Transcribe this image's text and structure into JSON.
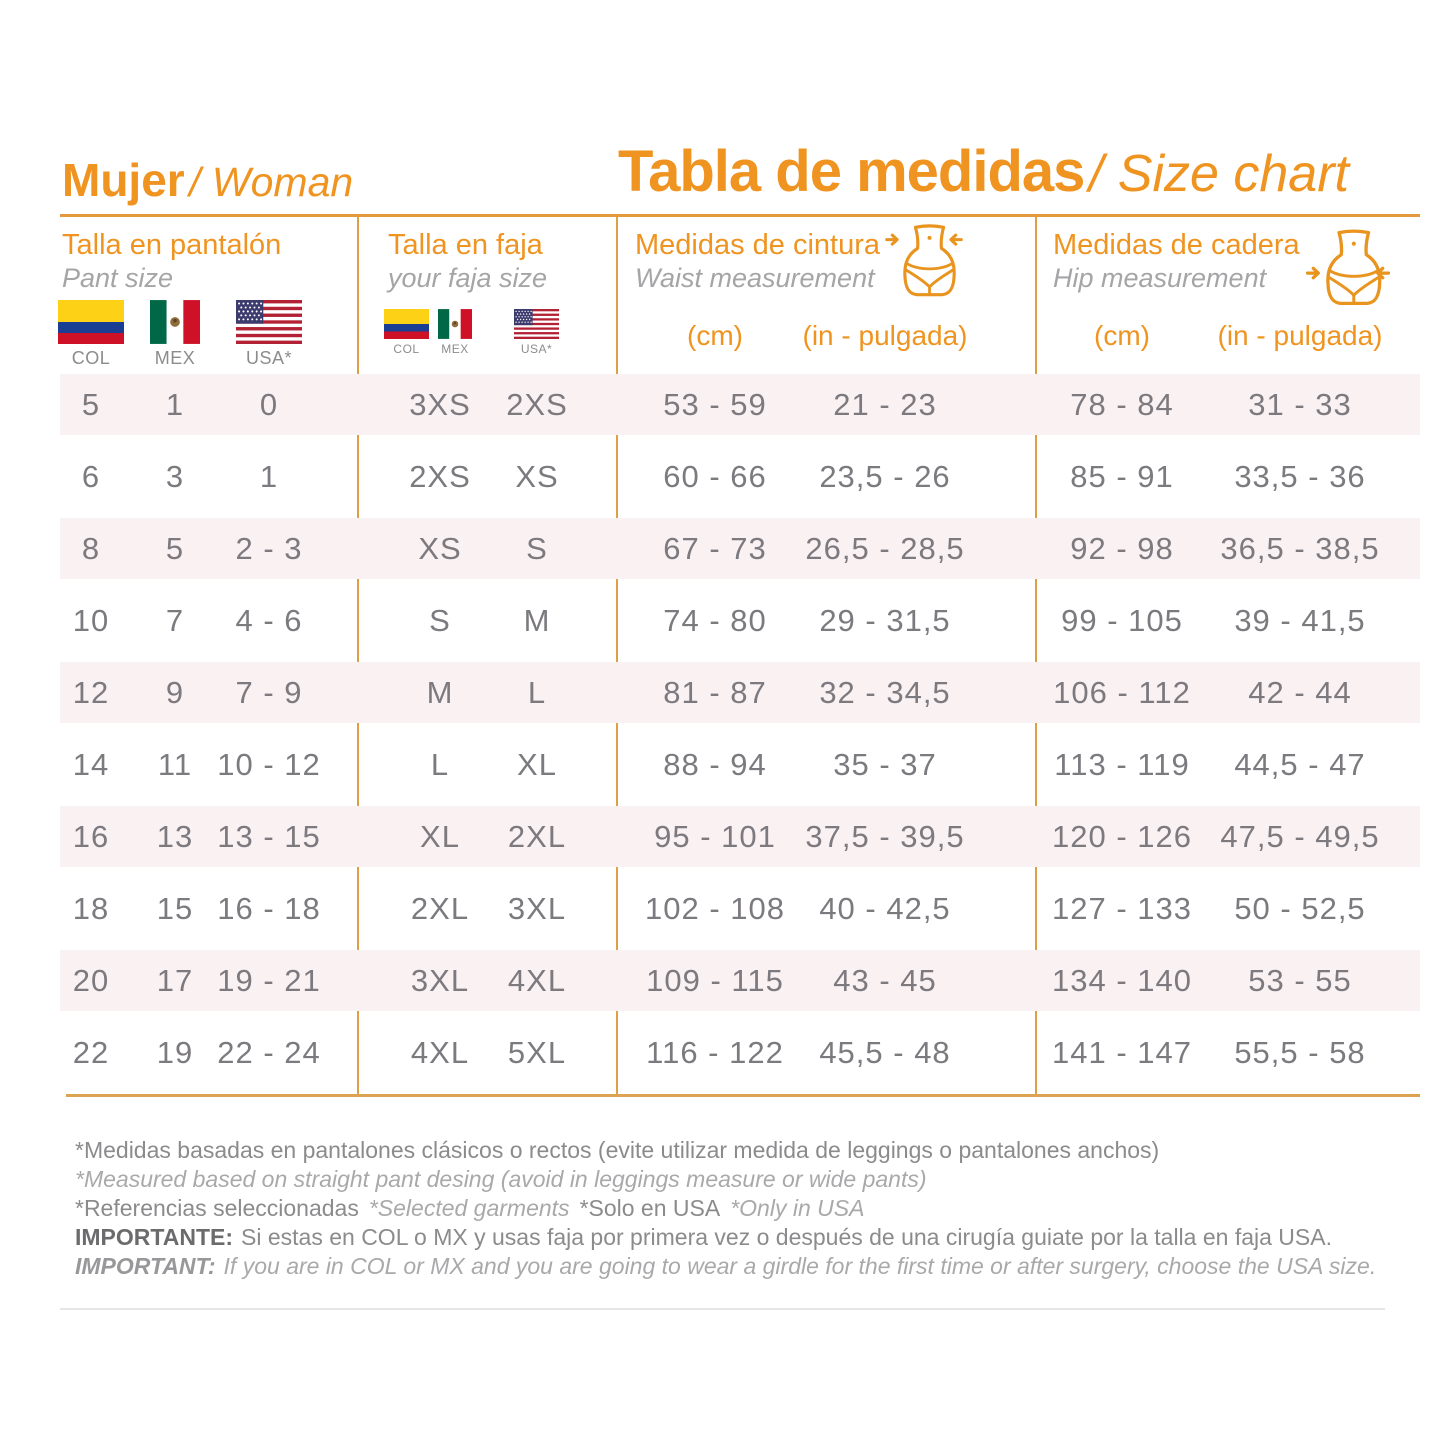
{
  "header": {
    "left_bold": "Mujer",
    "left_italic": "/ Woman",
    "main_bold": "Tabla de medidas",
    "main_italic": "/ Size chart"
  },
  "colors": {
    "accent_orange_text": "#EF9420",
    "accent_orange_line": "#DFA045",
    "row_stripe_pink": "#FAF1F3",
    "data_gray": "#7C7A7F"
  },
  "columns": {
    "pant": {
      "title": "Talla en pantalón",
      "subtitle": "Pant size",
      "flag_labels": [
        "COL",
        "MEX",
        "USA*"
      ]
    },
    "faja": {
      "title": "Talla en faja",
      "subtitle": "your faja size",
      "flag_labels": [
        "COL",
        "MEX",
        "USA*"
      ]
    },
    "waist": {
      "title": "Medidas de cintura",
      "subtitle": "Waist measurement",
      "unit_cm": "(cm)",
      "unit_in": "(in - pulgada)"
    },
    "hip": {
      "title": "Medidas de cadera",
      "subtitle": "Hip measurement",
      "unit_cm": "(cm)",
      "unit_in": "(in - pulgada)"
    }
  },
  "rows": [
    {
      "pant_col": "5",
      "pant_mex": "1",
      "pant_usa": "0",
      "faja_colmex": "3XS",
      "faja_usa": "2XS",
      "waist_cm": "53 - 59",
      "waist_in": "21 - 23",
      "hip_cm": "78 - 84",
      "hip_in": "31 - 33"
    },
    {
      "pant_col": "6",
      "pant_mex": "3",
      "pant_usa": "1",
      "faja_colmex": "2XS",
      "faja_usa": "XS",
      "waist_cm": "60 - 66",
      "waist_in": "23,5 - 26",
      "hip_cm": "85 - 91",
      "hip_in": "33,5 - 36"
    },
    {
      "pant_col": "8",
      "pant_mex": "5",
      "pant_usa": "2 - 3",
      "faja_colmex": "XS",
      "faja_usa": "S",
      "waist_cm": "67 - 73",
      "waist_in": "26,5 - 28,5",
      "hip_cm": "92 - 98",
      "hip_in": "36,5 - 38,5"
    },
    {
      "pant_col": "10",
      "pant_mex": "7",
      "pant_usa": "4 - 6",
      "faja_colmex": "S",
      "faja_usa": "M",
      "waist_cm": "74 - 80",
      "waist_in": "29 - 31,5",
      "hip_cm": "99 - 105",
      "hip_in": "39 - 41,5"
    },
    {
      "pant_col": "12",
      "pant_mex": "9",
      "pant_usa": "7 - 9",
      "faja_colmex": "M",
      "faja_usa": "L",
      "waist_cm": "81 - 87",
      "waist_in": "32 - 34,5",
      "hip_cm": "106 - 112",
      "hip_in": "42 - 44"
    },
    {
      "pant_col": "14",
      "pant_mex": "11",
      "pant_usa": "10 - 12",
      "faja_colmex": "L",
      "faja_usa": "XL",
      "waist_cm": "88 - 94",
      "waist_in": "35 - 37",
      "hip_cm": "113 - 119",
      "hip_in": "44,5 - 47"
    },
    {
      "pant_col": "16",
      "pant_mex": "13",
      "pant_usa": "13 - 15",
      "faja_colmex": "XL",
      "faja_usa": "2XL",
      "waist_cm": "95 - 101",
      "waist_in": "37,5 - 39,5",
      "hip_cm": "120 - 126",
      "hip_in": "47,5 - 49,5"
    },
    {
      "pant_col": "18",
      "pant_mex": "15",
      "pant_usa": "16 - 18",
      "faja_colmex": "2XL",
      "faja_usa": "3XL",
      "waist_cm": "102 - 108",
      "waist_in": "40 - 42,5",
      "hip_cm": "127 - 133",
      "hip_in": "50 - 52,5"
    },
    {
      "pant_col": "20",
      "pant_mex": "17",
      "pant_usa": "19 - 21",
      "faja_colmex": "3XL",
      "faja_usa": "4XL",
      "waist_cm": "109 - 115",
      "waist_in": "43 - 45",
      "hip_cm": "134 - 140",
      "hip_in": "53 - 55"
    },
    {
      "pant_col": "22",
      "pant_mex": "19",
      "pant_usa": "22 - 24",
      "faja_colmex": "4XL",
      "faja_usa": "5XL",
      "waist_cm": "116 - 122",
      "waist_in": "45,5 - 48",
      "hip_cm": "141 - 147",
      "hip_in": "55,5 - 58"
    }
  ],
  "notes": {
    "line1": "*Medidas basadas en pantalones clásicos o rectos (evite utilizar medida de leggings o pantalones anchos)",
    "line2": "*Measured based on straight pant desing (avoid in leggings measure or wide pants)",
    "line3_a": "*Referencias seleccionadas",
    "line3_b": "*Selected garments",
    "line3_c": "*Solo en USA",
    "line3_d": "*Only in USA",
    "line4_label": "IMPORTANTE:",
    "line4_text": "Si estas en COL o MX y usas faja por primera vez o después de una cirugía guiate por la talla en faja USA.",
    "line5_label": "IMPORTANT:",
    "line5_text": "If you are in COL or MX and you are going to wear a girdle for the first time or after surgery, choose the USA size."
  }
}
